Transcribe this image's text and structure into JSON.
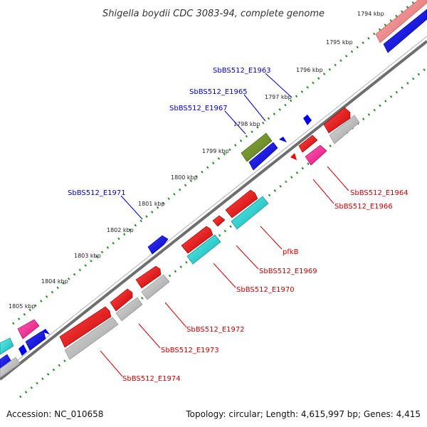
{
  "title": "Shigella boydii CDC 3083-94, complete genome",
  "footer": {
    "accession": "Accession: NC_010658",
    "summary": "Topology: circular; Length: 4,615,997 bp; Genes: 4,415"
  },
  "kbp_ticks": [
    "1794 kbp",
    "1795 kbp",
    "1796 kbp",
    "1797 kbp",
    "1798 kbp",
    "1799 kbp",
    "1800 kbp",
    "1801 kbp",
    "1802 kbp",
    "1803 kbp",
    "1804 kbp",
    "1805 kbp"
  ],
  "forward_labels": [
    "SbBS512_E1963",
    "SbBS512_E1965",
    "SbBS512_E1967",
    "SbBS512_E1971"
  ],
  "reverse_labels": [
    "SbBS512_E1964",
    "SbBS512_E1966",
    "pfkB",
    "SbBS512_E1969",
    "SbBS512_E1970",
    "SbBS512_E1972",
    "SbBS512_E1973",
    "SbBS512_E1974"
  ],
  "colors": {
    "forward_gene": "#0000ee",
    "reverse_gene": "#ee0000",
    "rna_gene": "#00cccc",
    "pseudo_gene": "#ff1493",
    "other_gene": "#6b8e23",
    "grey_feature": "#b0b0b0",
    "pink_feature": "#f08080",
    "backbone": "#777777",
    "tick_green": "#228b22",
    "forward_label": "#0000cc",
    "reverse_label": "#cc0000"
  }
}
